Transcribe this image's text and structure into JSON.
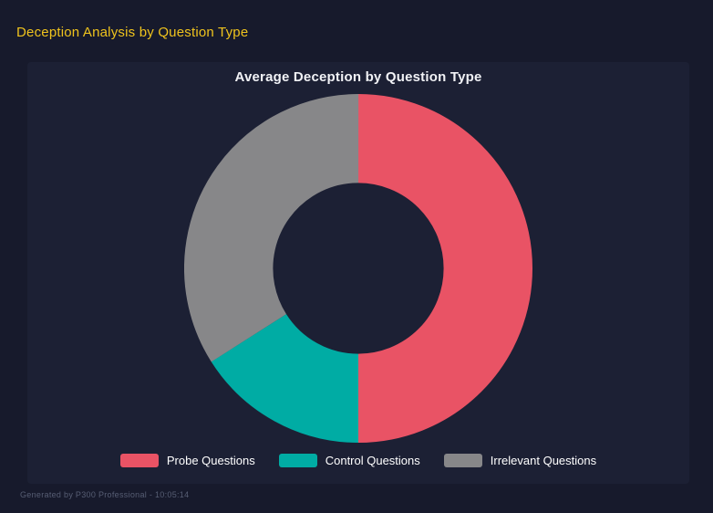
{
  "page": {
    "title": "Deception Analysis by Question Type",
    "footer": "Generated by P300 Professional - 10:05:14",
    "background_color": "#171A2C",
    "panel_color": "#1C2034",
    "title_color": "#EFC31D"
  },
  "chart_data": {
    "type": "pie",
    "variant": "donut",
    "title": "Average Deception by Question Type",
    "categories": [
      "Probe Questions",
      "Control Questions",
      "Irrelevant Questions"
    ],
    "values": [
      50,
      16,
      34
    ],
    "values_unit": "percent of circle (estimated from arc angles; no numeric labels shown)",
    "colors": [
      "#E95365",
      "#00ACA4",
      "#878789"
    ],
    "start_angle_deg": 0,
    "direction": "clockwise",
    "inner_radius_ratio": 0.49,
    "legend_position": "bottom",
    "grid": false
  },
  "legend": {
    "items": [
      {
        "label": "Probe Questions",
        "color": "#E95365"
      },
      {
        "label": "Control Questions",
        "color": "#00ACA4"
      },
      {
        "label": "Irrelevant Questions",
        "color": "#878789"
      }
    ]
  }
}
